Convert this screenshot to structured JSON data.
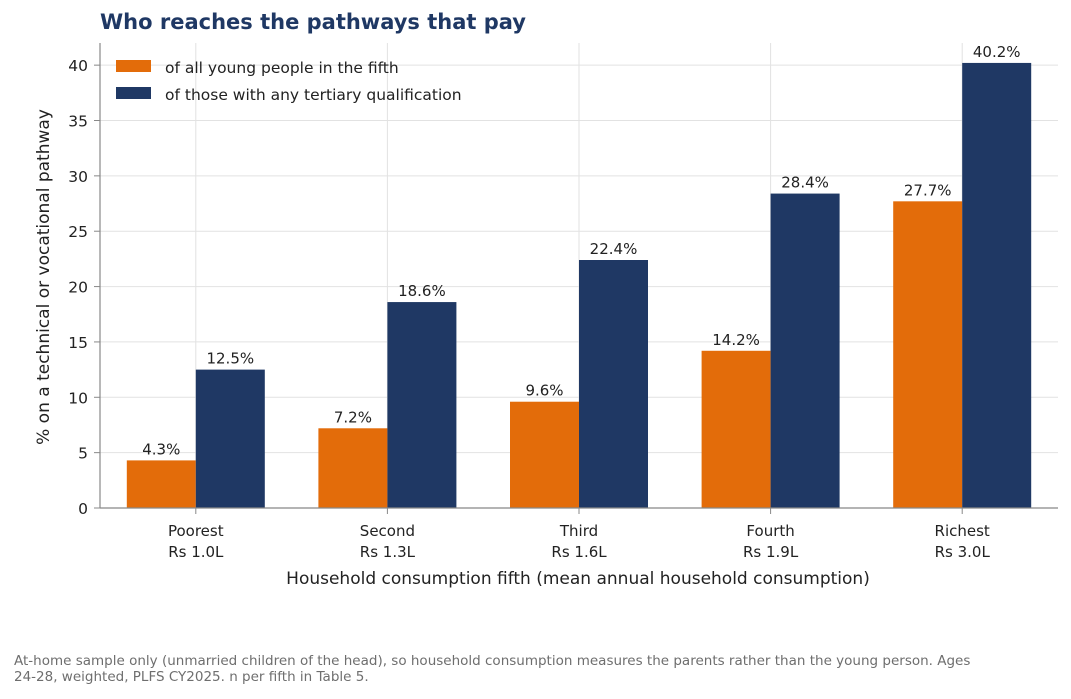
{
  "title": "Who reaches the pathways that pay",
  "footnote": "At-home sample only (unmarried children of the head), so household consumption measures the parents rather than the young person. Ages 24-28, weighted, PLFS CY2025. n per fifth in Table 5.",
  "chart_data": {
    "type": "bar",
    "title": "Who reaches the pathways that pay",
    "xlabel": "Household consumption fifth (mean annual household consumption)",
    "ylabel": "% on a technical or vocational pathway",
    "categories": [
      [
        "Poorest",
        "Rs 1.0L"
      ],
      [
        "Second",
        "Rs 1.3L"
      ],
      [
        "Third",
        "Rs 1.6L"
      ],
      [
        "Fourth",
        "Rs 1.9L"
      ],
      [
        "Richest",
        "Rs 3.0L"
      ]
    ],
    "series": [
      {
        "name": "of all young people in the fifth",
        "color": "#e36c0a",
        "values": [
          4.3,
          7.2,
          9.6,
          14.2,
          27.7
        ],
        "labels": [
          "4.3%",
          "7.2%",
          "9.6%",
          "14.2%",
          "27.7%"
        ]
      },
      {
        "name": "of those with any tertiary qualification",
        "color": "#1f3864",
        "values": [
          12.5,
          18.6,
          22.4,
          28.4,
          40.2
        ],
        "labels": [
          "12.5%",
          "18.6%",
          "22.4%",
          "28.4%",
          "40.2%"
        ]
      }
    ],
    "ylim": [
      0,
      42
    ],
    "yticks": [
      0,
      5,
      10,
      15,
      20,
      25,
      30,
      35,
      40
    ],
    "grid": true,
    "legend": "top-left"
  }
}
